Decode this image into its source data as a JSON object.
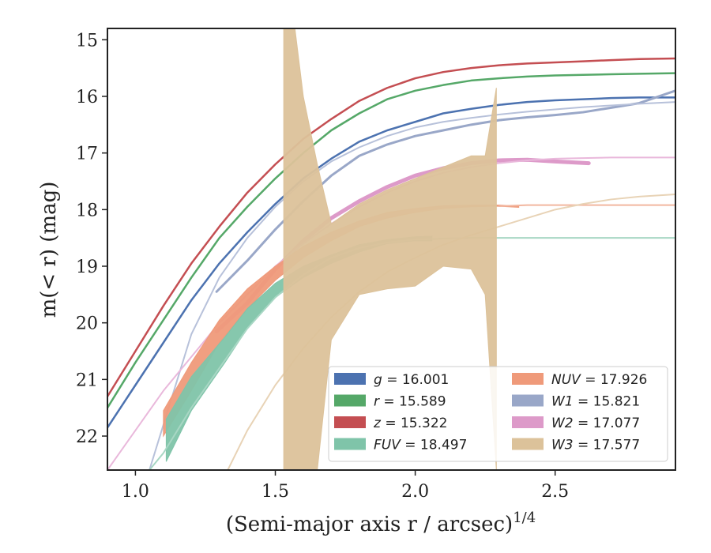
{
  "chart_data": {
    "type": "line",
    "xlabel": "(Semi-major axis r / arcsec)",
    "xlabel_exponent": "1/4",
    "ylabel": "m(< r) (mag)",
    "xlim": [
      0.9,
      2.93
    ],
    "ylim": [
      22.6,
      14.8
    ],
    "y_inverted": true,
    "x_ticks": [
      1.0,
      1.5,
      2.0,
      2.5
    ],
    "x_tick_labels": [
      "1.0",
      "1.5",
      "2.0",
      "2.5"
    ],
    "y_ticks": [
      15,
      16,
      17,
      18,
      19,
      20,
      21,
      22
    ],
    "y_tick_labels": [
      "15",
      "16",
      "17",
      "18",
      "19",
      "20",
      "21",
      "22"
    ],
    "grid": false,
    "legend_position": "lower-right",
    "legend": [
      {
        "symbol": "g",
        "label": "= 16.001",
        "color": "#4c72b0"
      },
      {
        "symbol": "r",
        "label": "= 15.589",
        "color": "#55a868"
      },
      {
        "symbol": "z",
        "label": "= 15.322",
        "color": "#c44e52"
      },
      {
        "symbol": "FUV",
        "label": "= 18.497",
        "color": "#7fc4a9"
      },
      {
        "symbol": "NUV",
        "label": "= 17.926",
        "color": "#ef9a7a"
      },
      {
        "symbol": "W1",
        "label": "= 15.821",
        "color": "#99a7c8"
      },
      {
        "symbol": "W2",
        "label": "= 17.077",
        "color": "#dd9ac9"
      },
      {
        "symbol": "W3",
        "label": "= 17.577",
        "color": "#dcc29a"
      }
    ],
    "series": [
      {
        "name": "g",
        "color": "#4c72b0",
        "kind": "line",
        "width": 2.5,
        "x": [
          0.9,
          1.0,
          1.1,
          1.2,
          1.3,
          1.4,
          1.5,
          1.6,
          1.7,
          1.8,
          1.9,
          2.0,
          2.1,
          2.2,
          2.3,
          2.4,
          2.5,
          2.6,
          2.7,
          2.8,
          2.93
        ],
        "y": [
          21.85,
          21.1,
          20.35,
          19.6,
          18.95,
          18.4,
          17.9,
          17.45,
          17.1,
          16.8,
          16.6,
          16.45,
          16.3,
          16.22,
          16.15,
          16.1,
          16.07,
          16.05,
          16.03,
          16.02,
          16.02
        ]
      },
      {
        "name": "r",
        "color": "#55a868",
        "kind": "line",
        "width": 2.5,
        "x": [
          0.9,
          1.0,
          1.1,
          1.2,
          1.3,
          1.4,
          1.5,
          1.6,
          1.7,
          1.8,
          1.9,
          2.0,
          2.1,
          2.2,
          2.3,
          2.4,
          2.5,
          2.6,
          2.7,
          2.8,
          2.93
        ],
        "y": [
          21.5,
          20.7,
          19.95,
          19.2,
          18.5,
          17.95,
          17.45,
          17.0,
          16.6,
          16.3,
          16.05,
          15.9,
          15.8,
          15.72,
          15.68,
          15.65,
          15.63,
          15.62,
          15.61,
          15.6,
          15.59
        ]
      },
      {
        "name": "z",
        "color": "#c44e52",
        "kind": "line",
        "width": 2.5,
        "x": [
          0.9,
          1.0,
          1.1,
          1.2,
          1.3,
          1.4,
          1.5,
          1.6,
          1.7,
          1.8,
          1.9,
          2.0,
          2.1,
          2.2,
          2.3,
          2.4,
          2.5,
          2.6,
          2.7,
          2.8,
          2.93
        ],
        "y": [
          21.3,
          20.5,
          19.7,
          18.95,
          18.3,
          17.7,
          17.2,
          16.75,
          16.4,
          16.08,
          15.85,
          15.68,
          15.57,
          15.5,
          15.45,
          15.42,
          15.4,
          15.38,
          15.36,
          15.34,
          15.33
        ]
      },
      {
        "name": "W1",
        "color": "#99a7c8",
        "kind": "line",
        "width": 3.0,
        "x": [
          1.29,
          1.4,
          1.5,
          1.6,
          1.7,
          1.8,
          1.9,
          2.0,
          2.1,
          2.2,
          2.3,
          2.4,
          2.5,
          2.6,
          2.7,
          2.8,
          2.93
        ],
        "y": [
          19.45,
          18.9,
          18.35,
          17.85,
          17.4,
          17.05,
          16.85,
          16.7,
          16.6,
          16.5,
          16.42,
          16.37,
          16.33,
          16.28,
          16.2,
          16.12,
          15.9
        ]
      },
      {
        "name": "W1 model",
        "color": "#b7c1da",
        "kind": "line",
        "width": 2.0,
        "x": [
          1.05,
          1.1,
          1.2,
          1.3,
          1.4,
          1.5,
          1.6,
          1.7,
          1.8,
          1.9,
          2.0,
          2.1,
          2.2,
          2.3,
          2.4,
          2.5,
          2.6,
          2.7,
          2.8,
          2.93
        ],
        "y": [
          22.6,
          21.8,
          20.2,
          19.2,
          18.5,
          17.95,
          17.5,
          17.15,
          16.9,
          16.7,
          16.55,
          16.45,
          16.38,
          16.32,
          16.27,
          16.23,
          16.19,
          16.16,
          16.13,
          16.1
        ]
      },
      {
        "name": "W2",
        "color": "#dd9ac9",
        "kind": "line",
        "width": 5.0,
        "x": [
          1.29,
          1.4,
          1.5,
          1.6,
          1.7,
          1.8,
          1.9,
          2.0,
          2.1,
          2.2,
          2.3,
          2.4,
          2.5,
          2.62
        ],
        "y": [
          20.15,
          19.65,
          19.05,
          18.55,
          18.15,
          17.85,
          17.6,
          17.4,
          17.27,
          17.18,
          17.13,
          17.12,
          17.15,
          17.18
        ]
      },
      {
        "name": "W2 model",
        "color": "#e9b8db",
        "kind": "line",
        "width": 2.0,
        "x": [
          0.9,
          1.0,
          1.1,
          1.2,
          1.3,
          1.4,
          1.5,
          1.6,
          1.7,
          1.8,
          1.9,
          2.0,
          2.1,
          2.2,
          2.3,
          2.4,
          2.5,
          2.6,
          2.7,
          2.8,
          2.93
        ],
        "y": [
          22.6,
          21.9,
          21.2,
          20.6,
          20.0,
          19.5,
          19.0,
          18.6,
          18.25,
          17.95,
          17.7,
          17.5,
          17.35,
          17.25,
          17.18,
          17.13,
          17.1,
          17.09,
          17.08,
          17.08,
          17.08
        ]
      },
      {
        "name": "NUV",
        "color": "#ef9a7a",
        "kind": "band",
        "x": [
          1.1,
          1.2,
          1.3,
          1.4,
          1.5,
          1.6,
          1.7,
          1.8,
          1.9,
          2.0,
          2.1,
          2.2,
          2.3,
          2.37
        ],
        "y_low": [
          22.0,
          21.2,
          20.35,
          19.75,
          19.25,
          18.85,
          18.55,
          18.3,
          18.15,
          18.05,
          17.98,
          17.95,
          17.94,
          17.96
        ],
        "y_high": [
          21.55,
          20.7,
          19.95,
          19.4,
          19.0,
          18.65,
          18.4,
          18.2,
          18.05,
          17.98,
          17.93,
          17.92,
          17.92,
          17.94
        ]
      },
      {
        "name": "NUV model",
        "color": "#f2b69f",
        "kind": "line",
        "width": 2.0,
        "x": [
          2.3,
          2.4,
          2.5,
          2.6,
          2.7,
          2.8,
          2.93
        ],
        "y": [
          17.94,
          17.92,
          17.92,
          17.92,
          17.92,
          17.92,
          17.92
        ]
      },
      {
        "name": "FUV",
        "color": "#7fc4a9",
        "kind": "band",
        "x": [
          1.11,
          1.2,
          1.32,
          1.4,
          1.5,
          1.6,
          1.7,
          1.8,
          1.9,
          2.0,
          2.06
        ],
        "y_low": [
          22.45,
          21.55,
          20.7,
          20.1,
          19.55,
          19.2,
          18.95,
          18.75,
          18.6,
          18.55,
          18.55
        ],
        "y_high": [
          21.7,
          20.95,
          20.25,
          19.75,
          19.3,
          19.0,
          18.8,
          18.62,
          18.53,
          18.48,
          18.47
        ]
      },
      {
        "name": "FUV model",
        "color": "#a8d7c4",
        "kind": "line",
        "width": 2.0,
        "x": [
          1.05,
          1.1,
          1.2,
          1.3,
          1.4,
          1.5,
          1.6,
          1.7,
          1.8,
          1.9,
          2.0,
          2.1,
          2.2,
          2.3,
          2.5,
          2.7,
          2.93
        ],
        "y": [
          22.6,
          22.3,
          21.5,
          20.8,
          20.1,
          19.55,
          19.15,
          18.85,
          18.68,
          18.58,
          18.53,
          18.51,
          18.5,
          18.5,
          18.5,
          18.5,
          18.5
        ]
      },
      {
        "name": "W3 model",
        "color": "#e8d3b6",
        "kind": "line",
        "width": 2.0,
        "x": [
          1.33,
          1.4,
          1.5,
          1.6,
          1.7,
          1.8,
          1.9,
          2.0,
          2.1,
          2.2,
          2.3,
          2.4,
          2.5,
          2.6,
          2.7,
          2.8,
          2.93
        ],
        "y": [
          22.6,
          21.9,
          21.1,
          20.45,
          19.9,
          19.45,
          19.1,
          18.85,
          18.62,
          18.45,
          18.3,
          18.15,
          18.0,
          17.9,
          17.82,
          17.77,
          17.73
        ]
      },
      {
        "name": "W3",
        "color": "#dcc29a",
        "kind": "band",
        "x": [
          1.53,
          1.57,
          1.6,
          1.65,
          1.7,
          1.8,
          1.9,
          2.0,
          2.1,
          2.2,
          2.25,
          2.29
        ],
        "y_low": [
          22.6,
          22.6,
          22.6,
          22.6,
          20.3,
          19.5,
          19.4,
          19.35,
          19.0,
          19.05,
          19.5,
          22.6
        ],
        "y_high": [
          14.8,
          14.8,
          16.0,
          17.2,
          18.25,
          17.9,
          17.65,
          17.45,
          17.25,
          17.05,
          17.05,
          15.85
        ]
      }
    ]
  }
}
